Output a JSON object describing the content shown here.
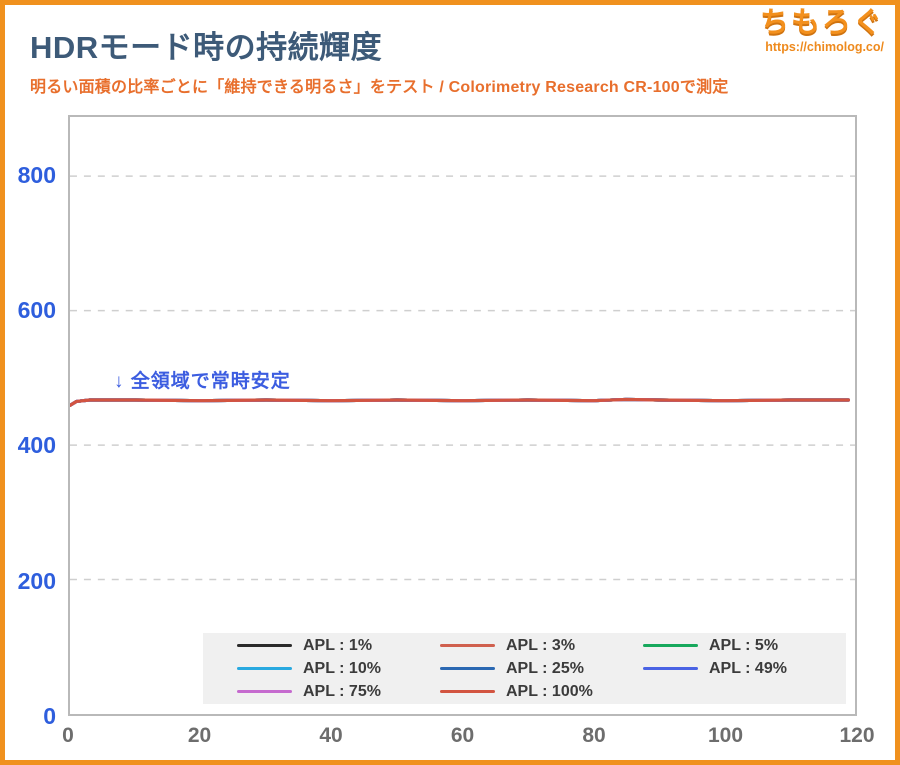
{
  "header": {
    "title": "HDRモード時の持続輝度",
    "subtitle": "明るい面積の比率ごとに「維持できる明るさ」をテスト / Colorimetry Research CR-100で測定",
    "logo_text": "ちもろぐ",
    "logo_url": "https://chimolog.co/"
  },
  "annotation": {
    "text": "↓ 全領域で常時安定"
  },
  "colors": {
    "frame_orange": "#f0911e",
    "title_navy": "#3d5a78",
    "subtitle_orange": "#e86f2d",
    "annotation_blue": "#3c5de0",
    "ytick_blue": "#2e5edd",
    "xtick_gray": "#6d6d6d",
    "grid_gray": "#cfcfcf",
    "plot_border_gray": "#b9b9b9",
    "legend_bg": "#f0f0f0",
    "visible_line": "#d25440"
  },
  "chart_data": {
    "type": "line",
    "title": "HDRモード時の持続輝度",
    "subtitle": "明るい面積の比率ごとに「維持できる明るさ」をテスト / Colorimetry Research CR-100で測定",
    "xlabel": "",
    "ylabel": "",
    "xlim": [
      0,
      120
    ],
    "ylim": [
      0,
      888
    ],
    "xticks": [
      0,
      20,
      40,
      60,
      80,
      100,
      120
    ],
    "yticks": [
      0,
      200,
      400,
      600,
      800
    ],
    "grid": "horizontal-dashed-only",
    "legend_position": "bottom-inside",
    "annotation": "↓ 全領域で常時安定 (all series overlap at ≈467 cd/m², constant for the full 0–120 range)",
    "x": [
      0,
      1,
      3,
      5,
      10,
      20,
      30,
      40,
      50,
      60,
      70,
      80,
      85,
      90,
      100,
      110,
      119
    ],
    "series": [
      {
        "name": "APL : 1%",
        "color": "#2b2b2b",
        "values": [
          459,
          465,
          467,
          467,
          467,
          466,
          467,
          466,
          467,
          466,
          467,
          466,
          468,
          467,
          466,
          467,
          467
        ]
      },
      {
        "name": "APL : 3%",
        "color": "#d0604e",
        "values": [
          459,
          465,
          467,
          467,
          467,
          466,
          467,
          466,
          467,
          466,
          467,
          466,
          468,
          467,
          466,
          467,
          467
        ]
      },
      {
        "name": "APL : 5%",
        "color": "#17a85c",
        "values": [
          459,
          465,
          467,
          467,
          467,
          466,
          467,
          466,
          467,
          466,
          467,
          466,
          468,
          467,
          466,
          467,
          467
        ]
      },
      {
        "name": "APL : 10%",
        "color": "#29a9e0",
        "values": [
          459,
          465,
          467,
          467,
          467,
          466,
          467,
          466,
          467,
          466,
          467,
          466,
          468,
          467,
          466,
          467,
          467
        ]
      },
      {
        "name": "APL : 25%",
        "color": "#2b68b2",
        "values": [
          459,
          465,
          467,
          467,
          467,
          466,
          467,
          466,
          467,
          466,
          467,
          466,
          468,
          467,
          466,
          467,
          467
        ]
      },
      {
        "name": "APL : 49%",
        "color": "#4a63e4",
        "values": [
          459,
          465,
          467,
          467,
          467,
          466,
          467,
          466,
          467,
          466,
          467,
          466,
          468,
          467,
          466,
          467,
          467
        ]
      },
      {
        "name": "APL : 75%",
        "color": "#c56ace",
        "values": [
          459,
          465,
          467,
          467,
          467,
          466,
          467,
          466,
          467,
          466,
          467,
          466,
          468,
          467,
          466,
          467,
          467
        ]
      },
      {
        "name": "APL : 100%",
        "color": "#d25440",
        "values": [
          459,
          465,
          467,
          467,
          467,
          466,
          467,
          466,
          467,
          466,
          467,
          466,
          468,
          467,
          466,
          467,
          467
        ]
      }
    ]
  }
}
